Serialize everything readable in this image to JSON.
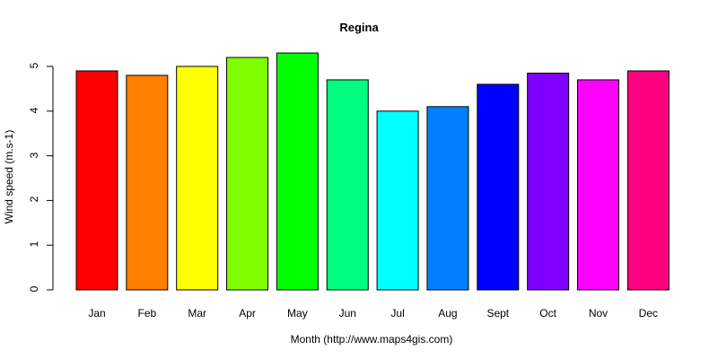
{
  "chart_data": {
    "type": "bar",
    "title": "Regina",
    "xlabel": "Month (http://www.maps4gis.com)",
    "ylabel": "Wind speed (m.s-1)",
    "categories": [
      "Jan",
      "Feb",
      "Mar",
      "Apr",
      "May",
      "Jun",
      "Jul",
      "Aug",
      "Sept",
      "Oct",
      "Nov",
      "Dec"
    ],
    "values": [
      4.9,
      4.8,
      5.0,
      5.2,
      5.3,
      4.7,
      4.0,
      4.1,
      4.6,
      4.85,
      4.7,
      4.9
    ],
    "colors": [
      "#FF0000",
      "#FF8000",
      "#FFFF00",
      "#80FF00",
      "#00FF00",
      "#00FF80",
      "#00FFFF",
      "#0080FF",
      "#0000FF",
      "#8000FF",
      "#FF00FF",
      "#FF0080"
    ],
    "yticks": [
      0,
      1,
      2,
      3,
      4,
      5
    ],
    "ylim": [
      0,
      5.3
    ],
    "grid": false,
    "legend": null
  }
}
